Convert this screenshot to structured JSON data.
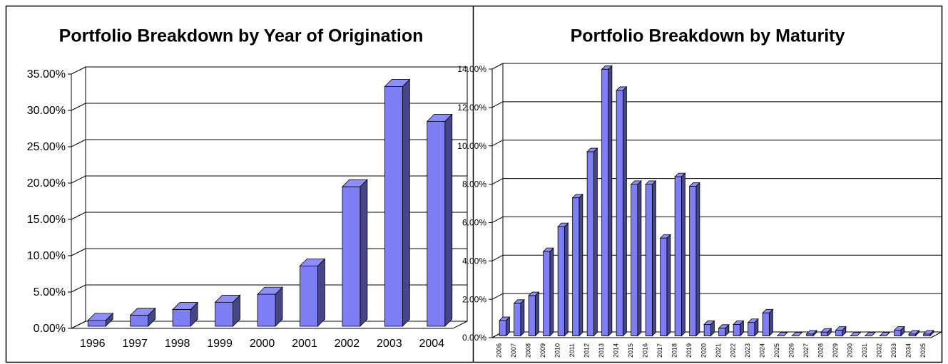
{
  "chart_data": [
    {
      "type": "bar3d",
      "title": "Portfolio Breakdown by Year of Origination",
      "categories": [
        "1996",
        "1997",
        "1998",
        "1999",
        "2000",
        "2001",
        "2002",
        "2003",
        "2004"
      ],
      "values": [
        0.8,
        1.5,
        2.3,
        3.3,
        4.4,
        8.3,
        19.2,
        33.0,
        28.2
      ],
      "color": "#7f7ff5",
      "ylim": [
        0,
        35
      ],
      "yticks": [
        {
          "value": 0,
          "label": "0.00%"
        },
        {
          "value": 5,
          "label": "5.00%"
        },
        {
          "value": 10,
          "label": "10.00%"
        },
        {
          "value": 15,
          "label": "15.00%"
        },
        {
          "value": 20,
          "label": "20.00%"
        },
        {
          "value": 25,
          "label": "25.00%"
        },
        {
          "value": 30,
          "label": "30.00%"
        },
        {
          "value": 35,
          "label": "35.00%"
        }
      ],
      "grid": true
    },
    {
      "type": "bar3d",
      "title": "Portfolio Breakdown by Maturity",
      "categories": [
        "2006",
        "2007",
        "2008",
        "2009",
        "2010",
        "2011",
        "2012",
        "2013",
        "2014",
        "2015",
        "2016",
        "2017",
        "2018",
        "2019",
        "2020",
        "2021",
        "2022",
        "2023",
        "2024",
        "2025",
        "2026",
        "2027",
        "2028",
        "2029",
        "2030",
        "2031",
        "2032",
        "2033",
        "2034",
        "2035"
      ],
      "values": [
        0.8,
        1.7,
        2.1,
        4.4,
        5.7,
        7.2,
        9.6,
        13.9,
        12.8,
        7.9,
        7.9,
        5.1,
        8.3,
        7.8,
        0.6,
        0.4,
        0.6,
        0.7,
        1.2,
        0,
        0,
        0.1,
        0.2,
        0.3,
        0,
        0,
        0,
        0.3,
        0.1,
        0.1
      ],
      "color": "#7f7ff5",
      "ylim": [
        0,
        14
      ],
      "yticks": [
        {
          "value": 0,
          "label": "0.00%"
        },
        {
          "value": 2,
          "label": "2.00%"
        },
        {
          "value": 4,
          "label": "4.00%"
        },
        {
          "value": 6,
          "label": "6.00%"
        },
        {
          "value": 8,
          "label": "8.00%"
        },
        {
          "value": 10,
          "label": "10.00%"
        },
        {
          "value": 12,
          "label": "12.00%"
        },
        {
          "value": 14,
          "label": "14.00%"
        }
      ],
      "grid": true
    }
  ]
}
